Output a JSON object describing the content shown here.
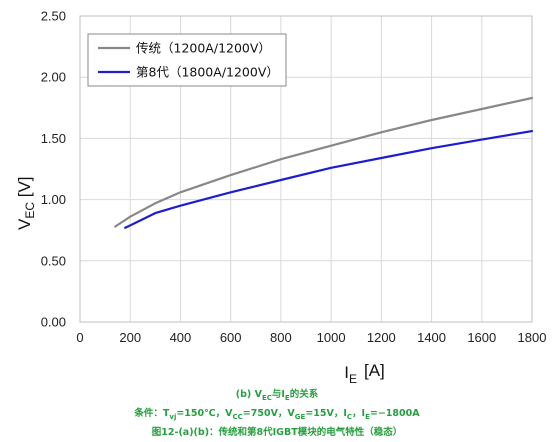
{
  "chart_data": {
    "type": "line",
    "xlabel": "I_E [A]",
    "ylabel": "V_EC [V]",
    "xlim": [
      0,
      1800
    ],
    "ylim": [
      0,
      2.5
    ],
    "xticks": [
      0,
      200,
      400,
      600,
      800,
      1000,
      1200,
      1400,
      1600,
      1800
    ],
    "yticks": [
      "0.00",
      "0.50",
      "1.00",
      "1.50",
      "2.00",
      "2.50"
    ],
    "grid": true,
    "legend_position": "top-left",
    "series": [
      {
        "name": "传统（1200A/1200V）",
        "color": "#888888",
        "x": [
          140,
          200,
          300,
          400,
          600,
          800,
          1000,
          1200,
          1400,
          1600,
          1800
        ],
        "y": [
          0.78,
          0.86,
          0.97,
          1.06,
          1.2,
          1.33,
          1.44,
          1.55,
          1.65,
          1.74,
          1.83
        ]
      },
      {
        "name": "第8代（1800A/1200V）",
        "color": "#1e1ecc",
        "x": [
          180,
          250,
          300,
          400,
          600,
          800,
          1000,
          1200,
          1400,
          1600,
          1800
        ],
        "y": [
          0.77,
          0.84,
          0.89,
          0.95,
          1.06,
          1.16,
          1.26,
          1.34,
          1.42,
          1.49,
          1.56
        ]
      }
    ]
  },
  "captions": {
    "line1": "(b) VEC与IE的关系",
    "line2": "条件：Tvj=150℃，VCC=750V，VGE=15V，IC，IE=−1800A",
    "line3": "图12-(a)(b)：传统和第8代IGBT模块的电气特性（稳态）"
  }
}
